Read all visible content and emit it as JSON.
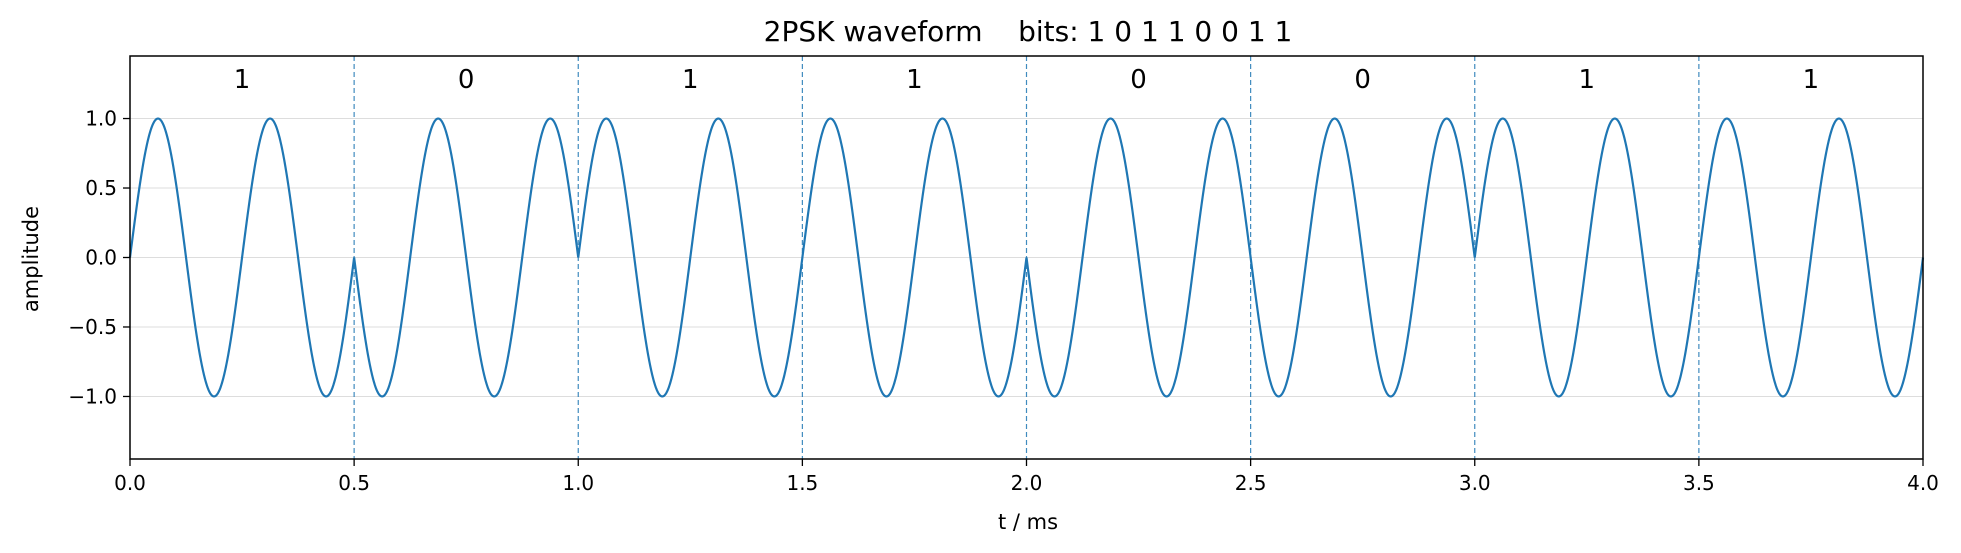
{
  "chart_data": {
    "type": "line",
    "title": "2PSK waveform    bits: 1 0 1 1 0 0 1 1",
    "xlabel": "t / ms",
    "ylabel": "amplitude",
    "xlim": [
      0.0,
      4.0
    ],
    "ylim": [
      -1.45,
      1.45
    ],
    "x_ticks": [
      0.0,
      0.5,
      1.0,
      1.5,
      2.0,
      2.5,
      3.0,
      3.5,
      4.0
    ],
    "x_tick_labels": [
      "0.0",
      "0.5",
      "1.0",
      "1.5",
      "2.0",
      "2.5",
      "3.0",
      "3.5",
      "4.0"
    ],
    "y_ticks": [
      1.0,
      0.5,
      0.0,
      -0.5,
      -1.0
    ],
    "y_tick_labels": [
      "1.0",
      "0.5",
      "0.0",
      "−0.5",
      "−1.0"
    ],
    "grid": "horizontal",
    "bits": [
      "1",
      "0",
      "1",
      "1",
      "0",
      "0",
      "1",
      "1"
    ],
    "bit_duration_ms": 0.5,
    "carrier_frequency_khz": 4,
    "bit_boundaries": [
      0.5,
      1.0,
      1.5,
      2.0,
      2.5,
      3.0,
      3.5
    ],
    "series": [
      {
        "formula": "sin(2π·f·t) if bit = 1, −sin(2π·f·t) if bit = 0",
        "color": "#1f77b4"
      }
    ],
    "boundary_color": "#1f77b4",
    "grid_color": "#dddddd"
  }
}
